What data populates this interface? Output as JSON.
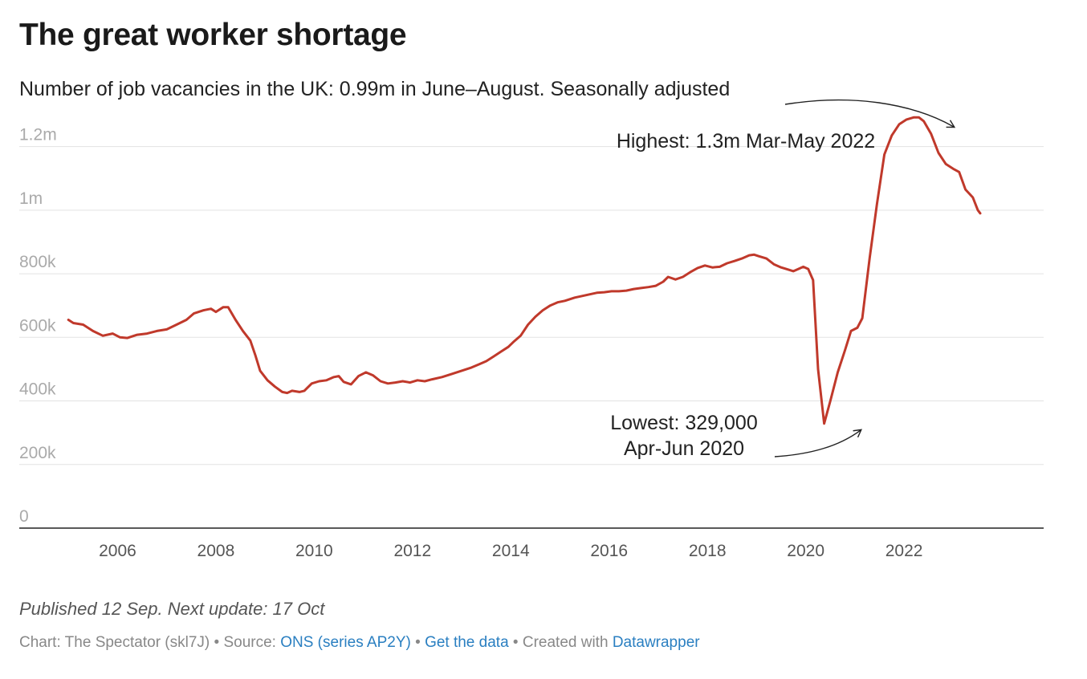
{
  "title": "The great worker shortage",
  "subtitle": "Number of job vacancies in the UK: 0.99m in June–August. Seasonally adjusted",
  "notes": "Published 12 Sep. Next update: 17 Oct",
  "footer": {
    "chart_label": "Chart: The Spectator (skl7J)",
    "source_label": "Source:",
    "source_link": "ONS (series AP2Y)",
    "data_link": "Get the data",
    "created_label": "Created with",
    "created_link": "Datawrapper",
    "separator": "•"
  },
  "colors": {
    "line": "#c0392b",
    "grid": "#e3e3e3",
    "axis": "#222222",
    "tick_text": "#aaaaaa",
    "x_tick_text": "#555555"
  },
  "chart_data": {
    "type": "line",
    "title": "The great worker shortage",
    "xlabel": "",
    "ylabel": "",
    "xlim": [
      2004.0,
      2024.84
    ],
    "ylim": [
      0,
      1300000
    ],
    "y_ticks": [
      {
        "value": 0,
        "label": "0"
      },
      {
        "value": 200000,
        "label": "200k"
      },
      {
        "value": 400000,
        "label": "400k"
      },
      {
        "value": 600000,
        "label": "600k"
      },
      {
        "value": 800000,
        "label": "800k"
      },
      {
        "value": 1000000,
        "label": "1m"
      },
      {
        "value": 1200000,
        "label": "1.2m"
      }
    ],
    "x_ticks": [
      {
        "value": 2006,
        "label": "2006"
      },
      {
        "value": 2008,
        "label": "2008"
      },
      {
        "value": 2010,
        "label": "2010"
      },
      {
        "value": 2012,
        "label": "2012"
      },
      {
        "value": 2014,
        "label": "2014"
      },
      {
        "value": 2016,
        "label": "2016"
      },
      {
        "value": 2018,
        "label": "2018"
      },
      {
        "value": 2020,
        "label": "2020"
      },
      {
        "value": 2022,
        "label": "2022"
      }
    ],
    "series": [
      {
        "name": "Job vacancies",
        "points": [
          [
            2005.0,
            655000
          ],
          [
            2005.1,
            645000
          ],
          [
            2005.3,
            640000
          ],
          [
            2005.5,
            620000
          ],
          [
            2005.7,
            605000
          ],
          [
            2005.9,
            612000
          ],
          [
            2006.05,
            600000
          ],
          [
            2006.2,
            598000
          ],
          [
            2006.4,
            608000
          ],
          [
            2006.6,
            612000
          ],
          [
            2006.8,
            620000
          ],
          [
            2007.0,
            625000
          ],
          [
            2007.2,
            640000
          ],
          [
            2007.4,
            655000
          ],
          [
            2007.55,
            675000
          ],
          [
            2007.75,
            685000
          ],
          [
            2007.9,
            690000
          ],
          [
            2008.0,
            680000
          ],
          [
            2008.15,
            695000
          ],
          [
            2008.25,
            695000
          ],
          [
            2008.4,
            655000
          ],
          [
            2008.55,
            620000
          ],
          [
            2008.7,
            590000
          ],
          [
            2008.8,
            545000
          ],
          [
            2008.9,
            495000
          ],
          [
            2009.05,
            465000
          ],
          [
            2009.2,
            445000
          ],
          [
            2009.35,
            428000
          ],
          [
            2009.45,
            425000
          ],
          [
            2009.55,
            432000
          ],
          [
            2009.7,
            428000
          ],
          [
            2009.8,
            432000
          ],
          [
            2009.95,
            455000
          ],
          [
            2010.1,
            462000
          ],
          [
            2010.25,
            465000
          ],
          [
            2010.4,
            475000
          ],
          [
            2010.5,
            478000
          ],
          [
            2010.6,
            460000
          ],
          [
            2010.75,
            452000
          ],
          [
            2010.9,
            478000
          ],
          [
            2011.05,
            490000
          ],
          [
            2011.2,
            480000
          ],
          [
            2011.35,
            462000
          ],
          [
            2011.5,
            455000
          ],
          [
            2011.65,
            458000
          ],
          [
            2011.8,
            462000
          ],
          [
            2011.95,
            458000
          ],
          [
            2012.1,
            465000
          ],
          [
            2012.25,
            462000
          ],
          [
            2012.4,
            468000
          ],
          [
            2012.6,
            475000
          ],
          [
            2012.8,
            485000
          ],
          [
            2013.0,
            495000
          ],
          [
            2013.2,
            505000
          ],
          [
            2013.35,
            515000
          ],
          [
            2013.5,
            525000
          ],
          [
            2013.65,
            540000
          ],
          [
            2013.8,
            555000
          ],
          [
            2013.95,
            570000
          ],
          [
            2014.05,
            585000
          ],
          [
            2014.2,
            605000
          ],
          [
            2014.35,
            640000
          ],
          [
            2014.5,
            665000
          ],
          [
            2014.65,
            685000
          ],
          [
            2014.8,
            700000
          ],
          [
            2014.95,
            710000
          ],
          [
            2015.1,
            715000
          ],
          [
            2015.3,
            725000
          ],
          [
            2015.45,
            730000
          ],
          [
            2015.6,
            735000
          ],
          [
            2015.75,
            740000
          ],
          [
            2015.9,
            742000
          ],
          [
            2016.05,
            745000
          ],
          [
            2016.2,
            745000
          ],
          [
            2016.35,
            747000
          ],
          [
            2016.5,
            752000
          ],
          [
            2016.65,
            755000
          ],
          [
            2016.8,
            758000
          ],
          [
            2016.95,
            762000
          ],
          [
            2017.1,
            775000
          ],
          [
            2017.2,
            790000
          ],
          [
            2017.35,
            782000
          ],
          [
            2017.5,
            790000
          ],
          [
            2017.65,
            805000
          ],
          [
            2017.8,
            818000
          ],
          [
            2017.95,
            826000
          ],
          [
            2018.1,
            820000
          ],
          [
            2018.25,
            822000
          ],
          [
            2018.4,
            833000
          ],
          [
            2018.55,
            840000
          ],
          [
            2018.7,
            848000
          ],
          [
            2018.85,
            858000
          ],
          [
            2018.95,
            860000
          ],
          [
            2019.05,
            855000
          ],
          [
            2019.2,
            848000
          ],
          [
            2019.35,
            830000
          ],
          [
            2019.5,
            820000
          ],
          [
            2019.6,
            815000
          ],
          [
            2019.75,
            808000
          ],
          [
            2019.85,
            815000
          ],
          [
            2019.95,
            822000
          ],
          [
            2020.05,
            815000
          ],
          [
            2020.15,
            780000
          ],
          [
            2020.25,
            500000
          ],
          [
            2020.375,
            329000
          ],
          [
            2020.5,
            400000
          ],
          [
            2020.65,
            490000
          ],
          [
            2020.8,
            560000
          ],
          [
            2020.92,
            620000
          ],
          [
            2021.05,
            630000
          ],
          [
            2021.15,
            660000
          ],
          [
            2021.3,
            850000
          ],
          [
            2021.45,
            1020000
          ],
          [
            2021.6,
            1175000
          ],
          [
            2021.75,
            1235000
          ],
          [
            2021.9,
            1270000
          ],
          [
            2022.05,
            1285000
          ],
          [
            2022.2,
            1292000
          ],
          [
            2022.3,
            1292000
          ],
          [
            2022.4,
            1280000
          ],
          [
            2022.55,
            1240000
          ],
          [
            2022.7,
            1180000
          ],
          [
            2022.85,
            1145000
          ],
          [
            2023.0,
            1130000
          ],
          [
            2023.12,
            1120000
          ],
          [
            2023.25,
            1065000
          ],
          [
            2023.4,
            1040000
          ],
          [
            2023.5,
            1000000
          ],
          [
            2023.55,
            990000
          ]
        ]
      }
    ],
    "annotations": [
      {
        "text": "Highest: 1.3m Mar-May 2022",
        "x": 2022.25,
        "y": 1292000
      },
      {
        "lines": [
          "Lowest: 329,000",
          "Apr-Jun 2020"
        ],
        "x": 2020.375,
        "y": 329000
      }
    ]
  }
}
